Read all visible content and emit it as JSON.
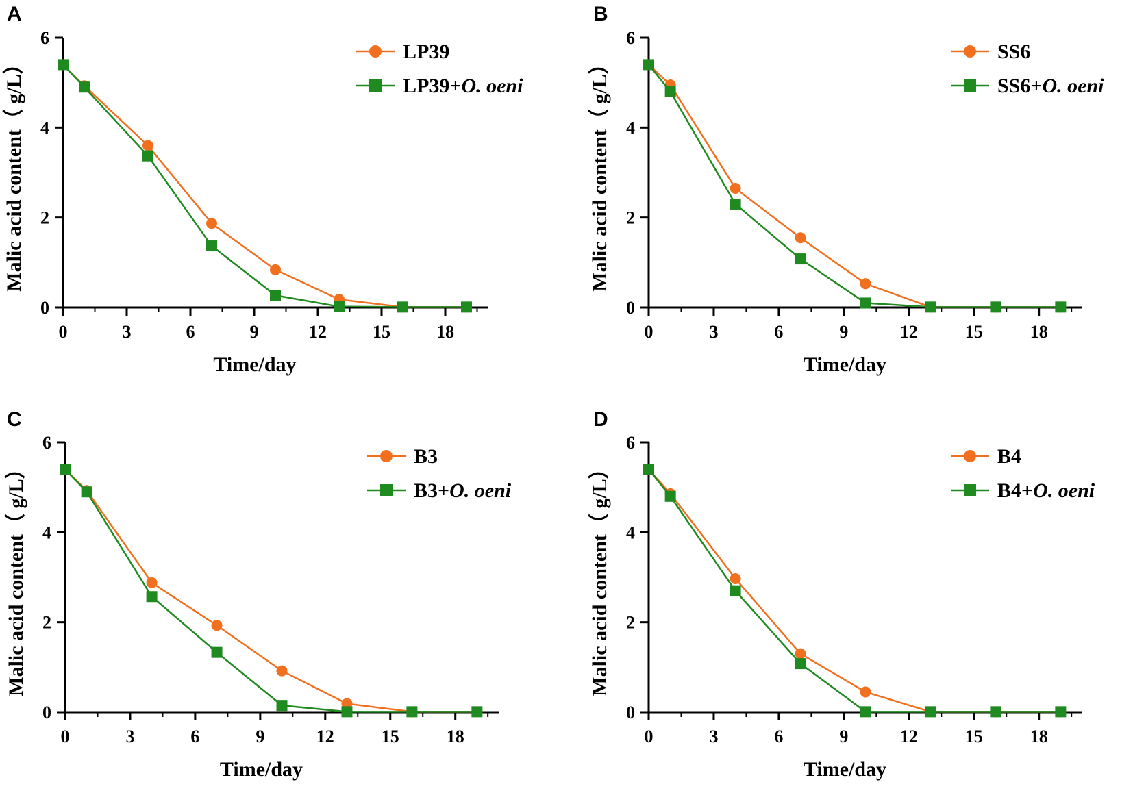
{
  "colors": {
    "series1": "#f07020",
    "series2": "#1f8a1f",
    "axis": "#000000"
  },
  "chart_data": [
    {
      "panel": "A",
      "type": "line",
      "xlabel": "Time/day",
      "ylabel": "Malic acid content（ g/L）",
      "xlim": [
        0,
        20
      ],
      "ylim": [
        0,
        6
      ],
      "xticks": [
        0,
        3,
        6,
        9,
        12,
        15,
        18
      ],
      "yticks": [
        0,
        2,
        4,
        6
      ],
      "x": [
        0,
        1,
        4,
        7,
        10,
        13,
        16,
        19
      ],
      "legend_position": "top-right",
      "series": [
        {
          "name": "LP39",
          "suffix": "",
          "marker": "circle",
          "values": [
            5.4,
            4.93,
            3.6,
            1.87,
            0.84,
            0.18,
            0.01,
            0.01
          ]
        },
        {
          "name": "LP39+",
          "suffix": "O. oeni",
          "marker": "square",
          "values": [
            5.4,
            4.9,
            3.37,
            1.37,
            0.27,
            0.02,
            0.01,
            0.01
          ]
        }
      ]
    },
    {
      "panel": "B",
      "type": "line",
      "xlabel": "Time/day",
      "ylabel": "Malic acid content（ g/L）",
      "xlim": [
        0,
        20
      ],
      "ylim": [
        0,
        6
      ],
      "xticks": [
        0,
        3,
        6,
        9,
        12,
        15,
        18
      ],
      "yticks": [
        0,
        2,
        4,
        6
      ],
      "x": [
        0,
        1,
        4,
        7,
        10,
        13,
        16,
        19
      ],
      "legend_position": "top-right",
      "series": [
        {
          "name": "SS6",
          "suffix": "",
          "marker": "circle",
          "values": [
            5.4,
            4.95,
            2.65,
            1.55,
            0.53,
            0.01,
            0.01,
            0.01
          ]
        },
        {
          "name": "SS6+",
          "suffix": "O. oeni",
          "marker": "square",
          "values": [
            5.4,
            4.8,
            2.3,
            1.08,
            0.1,
            0.01,
            0.01,
            0.01
          ]
        }
      ]
    },
    {
      "panel": "C",
      "type": "line",
      "xlabel": "Time/day",
      "ylabel": "Malic acid content（ g/L）",
      "xlim": [
        0,
        20
      ],
      "ylim": [
        0,
        6
      ],
      "xticks": [
        0,
        3,
        6,
        9,
        12,
        15,
        18
      ],
      "yticks": [
        0,
        2,
        4,
        6
      ],
      "x": [
        0,
        1,
        4,
        7,
        10,
        13,
        16,
        19
      ],
      "legend_position": "top-right",
      "series": [
        {
          "name": "B3",
          "suffix": "",
          "marker": "circle",
          "values": [
            5.4,
            4.93,
            2.88,
            1.93,
            0.92,
            0.19,
            0.01,
            0.01
          ]
        },
        {
          "name": "B3+",
          "suffix": "O. oeni",
          "marker": "square",
          "values": [
            5.4,
            4.9,
            2.57,
            1.33,
            0.15,
            0.01,
            0.01,
            0.01
          ]
        }
      ]
    },
    {
      "panel": "D",
      "type": "line",
      "xlabel": "Time/day",
      "ylabel": "Malic acid content（ g/L）",
      "xlim": [
        0,
        20
      ],
      "ylim": [
        0,
        6
      ],
      "xticks": [
        0,
        3,
        6,
        9,
        12,
        15,
        18
      ],
      "yticks": [
        0,
        2,
        4,
        6
      ],
      "x": [
        0,
        1,
        4,
        7,
        10,
        13,
        16,
        19
      ],
      "legend_position": "top-right",
      "series": [
        {
          "name": "B4",
          "suffix": "",
          "marker": "circle",
          "values": [
            5.4,
            4.86,
            2.97,
            1.3,
            0.45,
            0.01,
            0.01,
            0.01
          ]
        },
        {
          "name": "B4+",
          "suffix": "O. oeni",
          "marker": "square",
          "values": [
            5.4,
            4.8,
            2.7,
            1.08,
            0.01,
            0.01,
            0.01,
            0.01
          ]
        }
      ]
    }
  ]
}
